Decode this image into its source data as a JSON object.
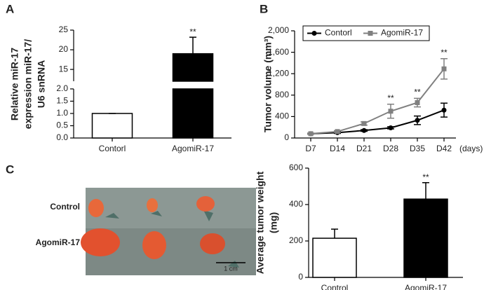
{
  "panel_labels": [
    "A",
    "B",
    "C"
  ],
  "photo": {
    "rows": [
      "Control",
      "AgomiR-17"
    ],
    "scale_bar": "1 cm"
  },
  "chart_data": [
    {
      "type": "bar",
      "ylabel": [
        "Relative miR-17",
        "expression miR-17/",
        "U6 snRNA"
      ],
      "categories": [
        "Contorl",
        "AgomiR-17"
      ],
      "values": [
        1.0,
        19
      ],
      "errors": [
        0,
        4.2
      ],
      "colors": [
        "#ffffff",
        "#000000"
      ],
      "annotations": [
        null,
        "**"
      ],
      "ylim": [
        0,
        25
      ],
      "ybreak": [
        2,
        12
      ],
      "yticks": [
        {
          "value": 0,
          "label": "0.0"
        },
        {
          "value": 0.5,
          "label": "0.5"
        },
        {
          "value": 1,
          "label": "1.0"
        },
        {
          "value": 1.5,
          "label": "1.5"
        },
        {
          "value": 2,
          "label": "2.0"
        },
        15,
        20,
        25
      ]
    },
    {
      "type": "line",
      "ylabel": [
        "Tumor volume (mm³)"
      ],
      "xlabel": "(days)",
      "categories": [
        "D7",
        "D14",
        "D21",
        "D28",
        "D35",
        "D42"
      ],
      "legend": "top-left",
      "series": [
        {
          "name": "Contorl",
          "color": "#000000",
          "marker": "circle",
          "values": [
            80,
            100,
            140,
            190,
            330,
            520
          ],
          "errors": [
            10,
            15,
            15,
            20,
            80,
            130
          ]
        },
        {
          "name": "AgomiR-17",
          "color": "#808080",
          "marker": "square",
          "values": [
            80,
            120,
            270,
            500,
            660,
            1290
          ],
          "errors": [
            10,
            15,
            30,
            130,
            80,
            190
          ],
          "annotations": [
            null,
            null,
            null,
            "**",
            "**",
            "**"
          ]
        }
      ],
      "ylim": [
        0,
        2000
      ],
      "yticks": [
        0,
        400,
        800,
        {
          "value": 1200,
          "label": "1,200"
        },
        {
          "value": 1600,
          "label": "1,600"
        },
        {
          "value": 2000,
          "label": "2,000"
        }
      ]
    },
    {
      "type": "bar",
      "ylabel": [
        "Average tumor weight",
        "(mg)"
      ],
      "categories": [
        "Control",
        "AgomiR-17"
      ],
      "values": [
        215,
        430
      ],
      "errors": [
        50,
        90
      ],
      "colors": [
        "#ffffff",
        "#000000"
      ],
      "annotations": [
        null,
        "**"
      ],
      "ylim": [
        0,
        600
      ],
      "yticks": [
        0,
        200,
        400,
        600
      ]
    }
  ]
}
